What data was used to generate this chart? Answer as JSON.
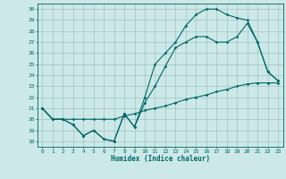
{
  "title": "",
  "xlabel": "Humidex (Indice chaleur)",
  "bg_color": "#cce8e8",
  "line_color": "#006666",
  "grid_color": "#99bbbb",
  "xlim": [
    -0.5,
    23.5
  ],
  "ylim": [
    17.5,
    30.5
  ],
  "xticks": [
    0,
    1,
    2,
    3,
    4,
    5,
    6,
    7,
    8,
    9,
    10,
    11,
    12,
    13,
    14,
    15,
    16,
    17,
    18,
    19,
    20,
    21,
    22,
    23
  ],
  "yticks": [
    18,
    19,
    20,
    21,
    22,
    23,
    24,
    25,
    26,
    27,
    28,
    29,
    30
  ],
  "line1_x": [
    0,
    1,
    2,
    3,
    4,
    5,
    6,
    7,
    8,
    9,
    10,
    11,
    12,
    13,
    14,
    15,
    16,
    17,
    18,
    19,
    20,
    21,
    22,
    23
  ],
  "line1_y": [
    21.0,
    20.0,
    20.0,
    20.0,
    20.0,
    20.0,
    20.0,
    20.0,
    20.3,
    20.5,
    20.8,
    21.0,
    21.2,
    21.5,
    21.8,
    22.0,
    22.2,
    22.5,
    22.7,
    23.0,
    23.2,
    23.3,
    23.3,
    23.3
  ],
  "line2_x": [
    0,
    1,
    2,
    3,
    4,
    5,
    6,
    7,
    8,
    9,
    10,
    11,
    12,
    13,
    14,
    15,
    16,
    17,
    18,
    19,
    20,
    21,
    22,
    23
  ],
  "line2_y": [
    21.0,
    20.0,
    20.0,
    19.5,
    18.5,
    19.0,
    18.2,
    18.0,
    20.5,
    19.3,
    21.5,
    23.0,
    24.8,
    26.5,
    27.0,
    27.5,
    27.5,
    27.0,
    27.0,
    27.5,
    28.7,
    27.0,
    24.3,
    23.5
  ],
  "line3_x": [
    0,
    1,
    2,
    3,
    4,
    5,
    6,
    7,
    8,
    9,
    10,
    11,
    12,
    13,
    14,
    15,
    16,
    17,
    18,
    19,
    20,
    21,
    22,
    23
  ],
  "line3_y": [
    21.0,
    20.0,
    20.0,
    19.5,
    18.5,
    19.0,
    18.2,
    18.0,
    20.5,
    19.3,
    22.0,
    25.0,
    26.0,
    27.0,
    28.5,
    29.5,
    30.0,
    30.0,
    29.5,
    29.2,
    29.0,
    27.0,
    24.3,
    23.5
  ]
}
